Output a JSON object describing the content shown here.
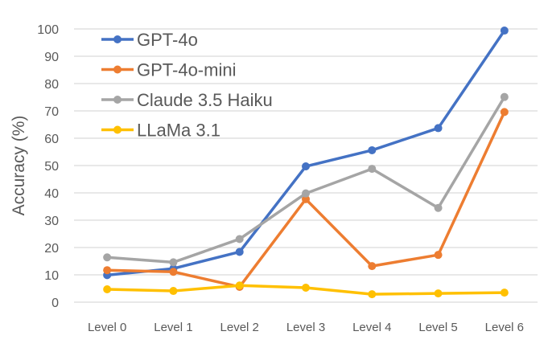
{
  "chart_data": {
    "type": "line",
    "title": "",
    "xlabel": "",
    "ylabel": "Accuracy (%)",
    "ylim": [
      0,
      100
    ],
    "yticks": [
      0,
      10,
      20,
      30,
      40,
      50,
      60,
      70,
      80,
      90,
      100
    ],
    "grid": true,
    "legend_position": "top-left",
    "categories": [
      "Level 0",
      "Level 1",
      "Level 2",
      "Level 3",
      "Level 4",
      "Level 5",
      "Level 6"
    ],
    "series": [
      {
        "name": "GPT-4o",
        "color": "#4472C4",
        "values": [
          9.9,
          12.3,
          18.4,
          49.7,
          55.6,
          63.7,
          99.4
        ]
      },
      {
        "name": "GPT-4o-mini",
        "color": "#ED7D31",
        "values": [
          11.7,
          11.1,
          5.6,
          37.7,
          13.2,
          17.3,
          69.6
        ]
      },
      {
        "name": "Claude 3.5 Haiku",
        "color": "#A5A5A5",
        "values": [
          16.4,
          14.6,
          23.1,
          39.8,
          48.8,
          34.5,
          75.1
        ]
      },
      {
        "name": "LLaMa 3.1",
        "color": "#FFC000",
        "values": [
          4.7,
          4.1,
          6.1,
          5.3,
          2.9,
          3.2,
          3.5
        ]
      }
    ]
  }
}
